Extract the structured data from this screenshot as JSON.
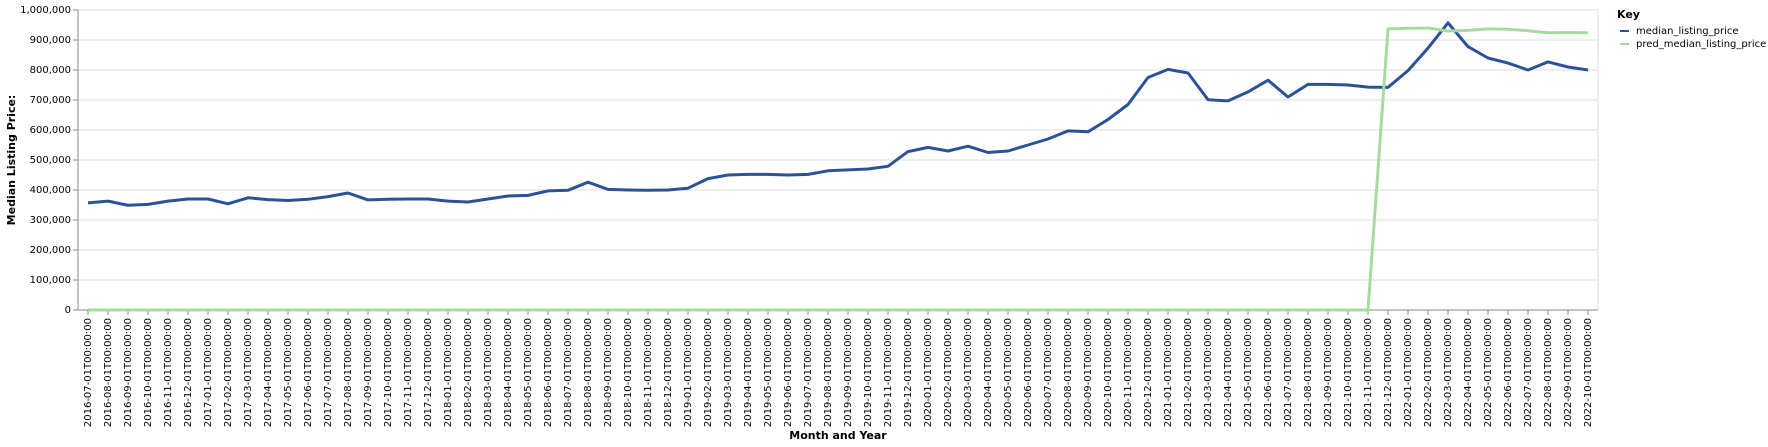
{
  "chart_data": {
    "type": "line",
    "x_label": "Month and Year",
    "y_label": "Median Listing Price:",
    "legend_title": "Key",
    "legend_position": "right",
    "grid": true,
    "categories": [
      "2016-07-01T00:00:00",
      "2016-08-01T00:00:00",
      "2016-09-01T00:00:00",
      "2016-10-01T00:00:00",
      "2016-11-01T00:00:00",
      "2016-12-01T00:00:00",
      "2017-01-01T00:00:00",
      "2017-02-01T00:00:00",
      "2017-03-01T00:00:00",
      "2017-04-01T00:00:00",
      "2017-05-01T00:00:00",
      "2017-06-01T00:00:00",
      "2017-07-01T00:00:00",
      "2017-08-01T00:00:00",
      "2017-09-01T00:00:00",
      "2017-10-01T00:00:00",
      "2017-11-01T00:00:00",
      "2017-12-01T00:00:00",
      "2018-01-01T00:00:00",
      "2018-02-01T00:00:00",
      "2018-03-01T00:00:00",
      "2018-04-01T00:00:00",
      "2018-05-01T00:00:00",
      "2018-06-01T00:00:00",
      "2018-07-01T00:00:00",
      "2018-08-01T00:00:00",
      "2018-09-01T00:00:00",
      "2018-10-01T00:00:00",
      "2018-11-01T00:00:00",
      "2018-12-01T00:00:00",
      "2019-01-01T00:00:00",
      "2019-02-01T00:00:00",
      "2019-03-01T00:00:00",
      "2019-04-01T00:00:00",
      "2019-05-01T00:00:00",
      "2019-06-01T00:00:00",
      "2019-07-01T00:00:00",
      "2019-08-01T00:00:00",
      "2019-09-01T00:00:00",
      "2019-10-01T00:00:00",
      "2019-11-01T00:00:00",
      "2019-12-01T00:00:00",
      "2020-01-01T00:00:00",
      "2020-02-01T00:00:00",
      "2020-03-01T00:00:00",
      "2020-04-01T00:00:00",
      "2020-05-01T00:00:00",
      "2020-06-01T00:00:00",
      "2020-07-01T00:00:00",
      "2020-08-01T00:00:00",
      "2020-09-01T00:00:00",
      "2020-10-01T00:00:00",
      "2020-11-01T00:00:00",
      "2020-12-01T00:00:00",
      "2021-01-01T00:00:00",
      "2021-02-01T00:00:00",
      "2021-03-01T00:00:00",
      "2021-04-01T00:00:00",
      "2021-05-01T00:00:00",
      "2021-06-01T00:00:00",
      "2021-07-01T00:00:00",
      "2021-08-01T00:00:00",
      "2021-09-01T00:00:00",
      "2021-10-01T00:00:00",
      "2021-11-01T00:00:00",
      "2021-12-01T00:00:00",
      "2022-01-01T00:00:00",
      "2022-02-01T00:00:00",
      "2022-03-01T00:00:00",
      "2022-04-01T00:00:00",
      "2022-05-01T00:00:00",
      "2022-06-01T00:00:00",
      "2022-07-01T00:00:00",
      "2022-08-01T00:00:00",
      "2022-09-01T00:00:00",
      "2022-10-01T00:00:00"
    ],
    "series": [
      {
        "name": "median_listing_price",
        "color": "#2a5298",
        "values": [
          357000,
          363000,
          349000,
          352000,
          363000,
          370000,
          370000,
          354000,
          374000,
          368000,
          365000,
          369000,
          378000,
          390000,
          367000,
          369000,
          370000,
          370000,
          363000,
          360000,
          370000,
          380000,
          382000,
          397000,
          399000,
          426000,
          402000,
          400000,
          399000,
          400000,
          406000,
          438000,
          450000,
          452000,
          452000,
          450000,
          452000,
          464000,
          467000,
          470000,
          479000,
          528000,
          542000,
          530000,
          546000,
          525000,
          530000,
          550000,
          570000,
          597000,
          594000,
          635000,
          685000,
          775000,
          802000,
          790000,
          701000,
          697000,
          727000,
          766000,
          710000,
          752000,
          752000,
          750000,
          743000,
          742000,
          798000,
          873000,
          957000,
          878000,
          840000,
          823000,
          800000,
          827000,
          810000,
          800000
        ]
      },
      {
        "name": "pred_median_listing_price",
        "color": "#a6dba0",
        "values": [
          0,
          0,
          0,
          0,
          0,
          0,
          0,
          0,
          0,
          0,
          0,
          0,
          0,
          0,
          0,
          0,
          0,
          0,
          0,
          0,
          0,
          0,
          0,
          0,
          0,
          0,
          0,
          0,
          0,
          0,
          0,
          0,
          0,
          0,
          0,
          0,
          0,
          0,
          0,
          0,
          0,
          0,
          0,
          0,
          0,
          0,
          0,
          0,
          0,
          0,
          0,
          0,
          0,
          0,
          0,
          0,
          0,
          0,
          0,
          0,
          0,
          0,
          0,
          0,
          0,
          937000,
          939000,
          940000,
          930000,
          932000,
          937000,
          936000,
          931000,
          924000,
          925000,
          924000
        ]
      }
    ],
    "ylim": [
      0,
      1000000
    ],
    "yticks": [
      0,
      {
        "value": 100000,
        "label": "100,000"
      },
      {
        "value": 200000,
        "label": "200,000"
      },
      {
        "value": 300000,
        "label": "300,000"
      },
      {
        "value": 400000,
        "label": "400,000"
      },
      {
        "value": 500000,
        "label": "500,000"
      },
      {
        "value": 600000,
        "label": "600,000"
      },
      {
        "value": 700000,
        "label": "700,000"
      },
      {
        "value": 800000,
        "label": "800,000"
      },
      {
        "value": 900000,
        "label": "900,000"
      },
      {
        "value": 1000000,
        "label": "1,000,000"
      }
    ]
  }
}
